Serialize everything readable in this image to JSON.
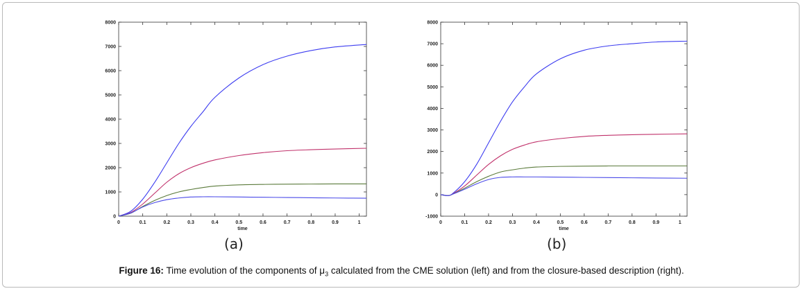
{
  "caption": {
    "label": "Figure 16:",
    "text_before": "Time evolution of the components of μ",
    "subscript": "3",
    "text_after": " calculated from the CME solution (left) and from the closure-based description (right)."
  },
  "chart_data": [
    {
      "type": "line",
      "panel_label": "(a)",
      "xlabel": "time",
      "ylabel": "",
      "xlim": [
        0,
        1.03
      ],
      "ylim": [
        0,
        8000
      ],
      "x_ticks": [
        0,
        0.1,
        0.2,
        0.3,
        0.4,
        0.5,
        0.6,
        0.7,
        0.8,
        0.9,
        1
      ],
      "x_tick_labels": [
        "0",
        "0.1",
        "0.2",
        "0.3",
        "0.4",
        "0.5",
        "0.6",
        "0.7",
        "0.8",
        "0.9",
        "1"
      ],
      "y_ticks": [
        0,
        1000,
        2000,
        3000,
        4000,
        5000,
        6000,
        7000,
        8000
      ],
      "y_tick_labels": [
        "0",
        "1000",
        "2000",
        "3000",
        "4000",
        "5000",
        "6000",
        "7000",
        "8000"
      ],
      "grid": false,
      "series": [
        {
          "color": "#3c3cf0",
          "x": [
            0,
            0.05,
            0.1,
            0.15,
            0.2,
            0.25,
            0.3,
            0.35,
            0.4,
            0.5,
            0.6,
            0.7,
            0.8,
            0.9,
            1.03
          ],
          "values": [
            0,
            200,
            700,
            1400,
            2200,
            3000,
            3700,
            4300,
            4900,
            5700,
            6250,
            6600,
            6830,
            6980,
            7080
          ]
        },
        {
          "color": "#c0306a",
          "x": [
            0,
            0.05,
            0.1,
            0.15,
            0.2,
            0.25,
            0.3,
            0.35,
            0.4,
            0.5,
            0.6,
            0.7,
            0.8,
            0.9,
            1.03
          ],
          "values": [
            0,
            150,
            500,
            950,
            1400,
            1750,
            2000,
            2180,
            2320,
            2500,
            2620,
            2700,
            2740,
            2770,
            2800
          ]
        },
        {
          "color": "#5a7a3a",
          "x": [
            0,
            0.05,
            0.1,
            0.15,
            0.2,
            0.25,
            0.3,
            0.35,
            0.4,
            0.5,
            0.6,
            0.7,
            0.8,
            0.9,
            1.03
          ],
          "values": [
            0,
            120,
            400,
            650,
            850,
            1000,
            1100,
            1180,
            1240,
            1290,
            1310,
            1320,
            1325,
            1330,
            1330
          ]
        },
        {
          "color": "#4a4ae8",
          "x": [
            0,
            0.05,
            0.1,
            0.15,
            0.2,
            0.25,
            0.3,
            0.35,
            0.4,
            0.5,
            0.6,
            0.7,
            0.8,
            0.9,
            1.03
          ],
          "values": [
            0,
            130,
            380,
            560,
            680,
            750,
            790,
            800,
            800,
            790,
            780,
            770,
            760,
            750,
            740
          ]
        }
      ]
    },
    {
      "type": "line",
      "panel_label": "(b)",
      "xlabel": "time",
      "ylabel": "",
      "xlim": [
        0,
        1.03
      ],
      "ylim": [
        -1000,
        8000
      ],
      "x_ticks": [
        0,
        0.1,
        0.2,
        0.3,
        0.4,
        0.5,
        0.6,
        0.7,
        0.8,
        0.9,
        1
      ],
      "x_tick_labels": [
        "0",
        "0.1",
        "0.2",
        "0.3",
        "0.4",
        "0.5",
        "0.6",
        "0.7",
        "0.8",
        "0.9",
        "1"
      ],
      "y_ticks": [
        -1000,
        0,
        1000,
        2000,
        3000,
        4000,
        5000,
        6000,
        7000,
        8000
      ],
      "y_tick_labels": [
        "-1000",
        "0",
        "1000",
        "2000",
        "3000",
        "4000",
        "5000",
        "6000",
        "7000",
        "8000"
      ],
      "grid": false,
      "series": [
        {
          "color": "#3c3cf0",
          "x": [
            0,
            0.03,
            0.05,
            0.1,
            0.15,
            0.2,
            0.25,
            0.3,
            0.35,
            0.4,
            0.5,
            0.6,
            0.7,
            0.8,
            0.9,
            1.03
          ],
          "values": [
            0,
            -40,
            50,
            600,
            1400,
            2400,
            3400,
            4300,
            5000,
            5600,
            6300,
            6700,
            6900,
            7000,
            7080,
            7120
          ]
        },
        {
          "color": "#c0306a",
          "x": [
            0,
            0.03,
            0.05,
            0.1,
            0.15,
            0.2,
            0.25,
            0.3,
            0.35,
            0.4,
            0.5,
            0.6,
            0.7,
            0.8,
            0.9,
            1.03
          ],
          "values": [
            0,
            -50,
            30,
            400,
            900,
            1400,
            1800,
            2100,
            2300,
            2450,
            2600,
            2700,
            2750,
            2780,
            2800,
            2820
          ]
        },
        {
          "color": "#5a7a3a",
          "x": [
            0,
            0.03,
            0.05,
            0.1,
            0.15,
            0.2,
            0.25,
            0.3,
            0.35,
            0.4,
            0.5,
            0.6,
            0.7,
            0.8,
            0.9,
            1.03
          ],
          "values": [
            0,
            -50,
            20,
            300,
            600,
            850,
            1050,
            1150,
            1230,
            1280,
            1310,
            1320,
            1330,
            1330,
            1330,
            1330
          ]
        },
        {
          "color": "#4a4ae8",
          "x": [
            0,
            0.03,
            0.05,
            0.1,
            0.15,
            0.2,
            0.25,
            0.3,
            0.35,
            0.4,
            0.5,
            0.6,
            0.7,
            0.8,
            0.9,
            1.03
          ],
          "values": [
            0,
            -50,
            20,
            250,
            500,
            700,
            800,
            820,
            820,
            820,
            810,
            800,
            790,
            780,
            770,
            760
          ]
        }
      ]
    }
  ]
}
